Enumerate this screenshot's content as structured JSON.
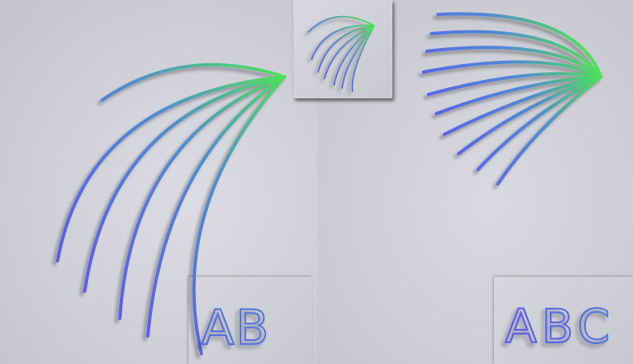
{
  "labels": {
    "left_panel": "AB",
    "right_panel": "ABC"
  },
  "colors": {
    "arc_start": "#5b5cf0",
    "arc_end": "#4fe05a",
    "background": "#cfcfd6"
  }
}
